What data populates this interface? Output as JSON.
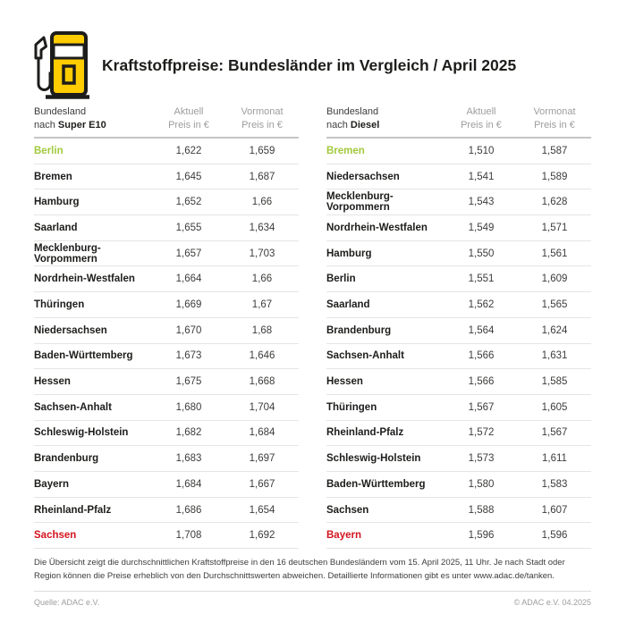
{
  "header": {
    "title": "Kraftstoffpreise: Bundesländer im Vergleich / April 2025",
    "icon": "fuel-pump-icon"
  },
  "columns": {
    "region_label": "Bundesland",
    "region_prefix": "nach",
    "current_label": "Aktuell",
    "current_sub": "Preis in €",
    "previous_label": "Vormonat",
    "previous_sub": "Preis in €"
  },
  "chart_data": [
    {
      "type": "table",
      "title": "Bundesland nach Super E10",
      "fuel": "Super E10",
      "columns": [
        "Bundesland nach Super E10",
        "Aktuell Preis in €",
        "Vormonat Preis in €"
      ],
      "rows": [
        {
          "name": "Berlin",
          "current": "1,622",
          "previous": "1,659",
          "highlight": "green"
        },
        {
          "name": "Bremen",
          "current": "1,645",
          "previous": "1,687",
          "highlight": ""
        },
        {
          "name": "Hamburg",
          "current": "1,652",
          "previous": "1,66",
          "highlight": ""
        },
        {
          "name": "Saarland",
          "current": "1,655",
          "previous": "1,634",
          "highlight": ""
        },
        {
          "name": "Mecklenburg-Vorpommern",
          "current": "1,657",
          "previous": "1,703",
          "highlight": ""
        },
        {
          "name": "Nordrhein-Westfalen",
          "current": "1,664",
          "previous": "1,66",
          "highlight": ""
        },
        {
          "name": "Thüringen",
          "current": "1,669",
          "previous": "1,67",
          "highlight": ""
        },
        {
          "name": "Niedersachsen",
          "current": "1,670",
          "previous": "1,68",
          "highlight": ""
        },
        {
          "name": "Baden-Württemberg",
          "current": "1,673",
          "previous": "1,646",
          "highlight": ""
        },
        {
          "name": "Hessen",
          "current": "1,675",
          "previous": "1,668",
          "highlight": ""
        },
        {
          "name": "Sachsen-Anhalt",
          "current": "1,680",
          "previous": "1,704",
          "highlight": ""
        },
        {
          "name": "Schleswig-Holstein",
          "current": "1,682",
          "previous": "1,684",
          "highlight": ""
        },
        {
          "name": "Brandenburg",
          "current": "1,683",
          "previous": "1,697",
          "highlight": ""
        },
        {
          "name": "Bayern",
          "current": "1,684",
          "previous": "1,667",
          "highlight": ""
        },
        {
          "name": "Rheinland-Pfalz",
          "current": "1,686",
          "previous": "1,654",
          "highlight": ""
        },
        {
          "name": "Sachsen",
          "current": "1,708",
          "previous": "1,692",
          "highlight": "red"
        }
      ]
    },
    {
      "type": "table",
      "title": "Bundesland nach Diesel",
      "fuel": "Diesel",
      "columns": [
        "Bundesland nach Diesel",
        "Aktuell Preis in €",
        "Vormonat Preis in €"
      ],
      "rows": [
        {
          "name": "Bremen",
          "current": "1,510",
          "previous": "1,587",
          "highlight": "green"
        },
        {
          "name": "Niedersachsen",
          "current": "1,541",
          "previous": "1,589",
          "highlight": ""
        },
        {
          "name": "Mecklenburg-Vorpommern",
          "current": "1,543",
          "previous": "1,628",
          "highlight": ""
        },
        {
          "name": "Nordrhein-Westfalen",
          "current": "1,549",
          "previous": "1,571",
          "highlight": ""
        },
        {
          "name": "Hamburg",
          "current": "1,550",
          "previous": "1,561",
          "highlight": ""
        },
        {
          "name": "Berlin",
          "current": "1,551",
          "previous": "1,609",
          "highlight": ""
        },
        {
          "name": "Saarland",
          "current": "1,562",
          "previous": "1,565",
          "highlight": ""
        },
        {
          "name": "Brandenburg",
          "current": "1,564",
          "previous": "1,624",
          "highlight": ""
        },
        {
          "name": "Sachsen-Anhalt",
          "current": "1,566",
          "previous": "1,631",
          "highlight": ""
        },
        {
          "name": "Hessen",
          "current": "1,566",
          "previous": "1,585",
          "highlight": ""
        },
        {
          "name": "Thüringen",
          "current": "1,567",
          "previous": "1,605",
          "highlight": ""
        },
        {
          "name": "Rheinland-Pfalz",
          "current": "1,572",
          "previous": "1,567",
          "highlight": ""
        },
        {
          "name": "Schleswig-Holstein",
          "current": "1,573",
          "previous": "1,611",
          "highlight": ""
        },
        {
          "name": "Baden-Württemberg",
          "current": "1,580",
          "previous": "1,583",
          "highlight": ""
        },
        {
          "name": "Sachsen",
          "current": "1,588",
          "previous": "1,607",
          "highlight": ""
        },
        {
          "name": "Bayern",
          "current": "1,596",
          "previous": "1,596",
          "highlight": "red"
        }
      ]
    }
  ],
  "footnote": "Die Übersicht zeigt die durchschnittlichen Kraftstoffpreise in den 16 deutschen Bundesländern vom 15. April 2025, 11 Uhr. Je nach Stadt oder Region können die Preise erheblich von den Durchschnittswerten abweichen. Detaillierte Informationen gibt es unter www.adac.de/tanken.",
  "footer": {
    "source": "Quelle: ADAC e.V.",
    "copyright": "© ADAC e.V. 04.2025"
  },
  "colors": {
    "brand_yellow": "#FFCC00",
    "highlight_green": "#a2c93c",
    "highlight_red": "#d3141e",
    "text_dark": "#1d1d1b",
    "text_gray": "#9d9d9c"
  }
}
